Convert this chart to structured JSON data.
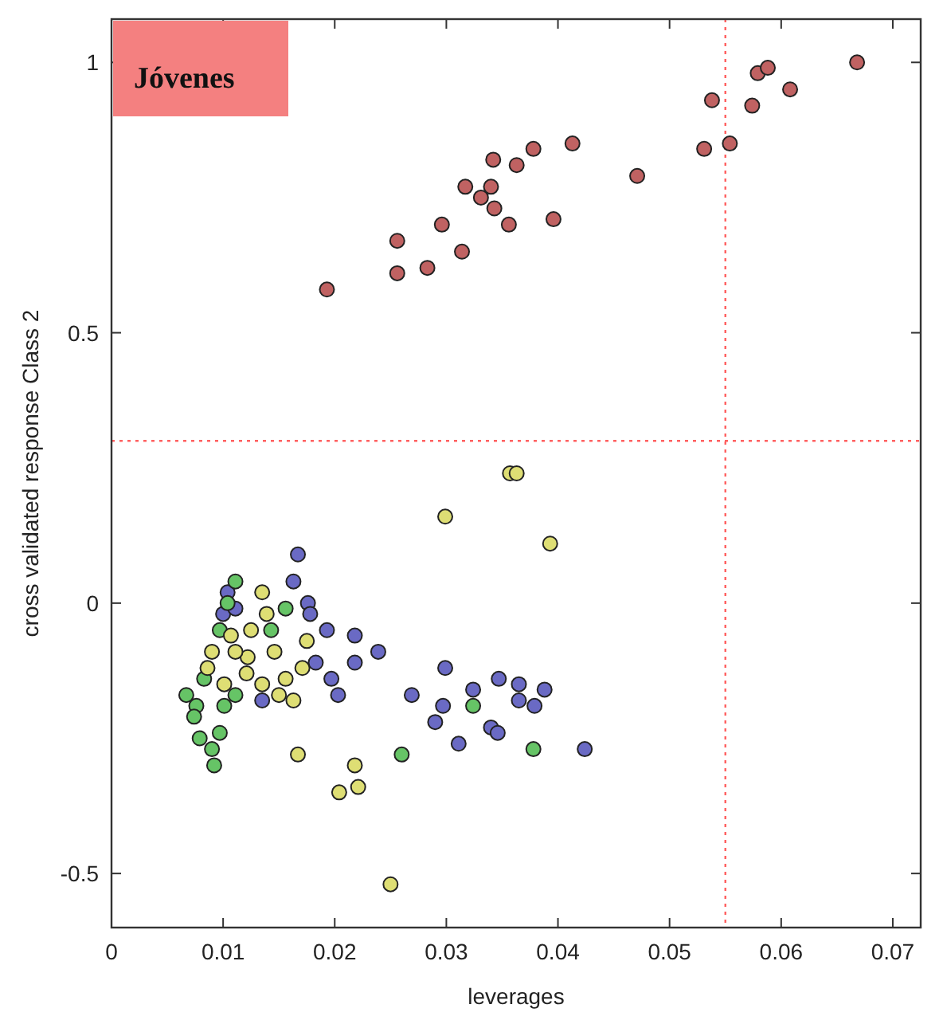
{
  "chart_data": {
    "type": "scatter",
    "xlabel": "leverages",
    "ylabel": "cross validated response Class 2",
    "annotations": [
      "Jóvenes"
    ],
    "xlim": [
      0,
      0.0725
    ],
    "xticks": [
      0,
      0.01,
      0.02,
      0.03,
      0.04,
      0.05,
      0.06,
      0.07
    ],
    "ylim": [
      -0.6,
      1.08
    ],
    "yticks": [
      -0.5,
      0,
      0.5,
      1
    ],
    "grid": false,
    "marker": "circle",
    "ref_lines": [
      {
        "axis": "x",
        "value": 0.055,
        "color": "#ff6060",
        "line_style": "dotted"
      },
      {
        "axis": "y",
        "value": 0.3,
        "color": "#ff6060",
        "line_style": "dotted"
      }
    ],
    "series": [
      {
        "color": "#c06262",
        "x": [
          0.0193,
          0.0256,
          0.0256,
          0.0283,
          0.0296,
          0.0314,
          0.0317,
          0.0331,
          0.034,
          0.0343,
          0.0342,
          0.0356,
          0.0363,
          0.0378,
          0.0396,
          0.0413,
          0.0471,
          0.0531,
          0.0538,
          0.0554,
          0.0574,
          0.0579,
          0.0588,
          0.0608,
          0.0668
        ],
        "values": [
          0.58,
          0.67,
          0.61,
          0.62,
          0.7,
          0.65,
          0.77,
          0.75,
          0.77,
          0.73,
          0.82,
          0.7,
          0.81,
          0.84,
          0.71,
          0.85,
          0.79,
          0.84,
          0.93,
          0.85,
          0.92,
          0.98,
          0.99,
          0.95,
          1.0
        ]
      },
      {
        "color": "#6a6ac4",
        "x": [
          0.0167,
          0.0163,
          0.0176,
          0.0104,
          0.01,
          0.0111,
          0.0178,
          0.0193,
          0.0218,
          0.0218,
          0.0239,
          0.0183,
          0.0197,
          0.0203,
          0.0135,
          0.0269,
          0.0299,
          0.0297,
          0.029,
          0.0311,
          0.0324,
          0.034,
          0.0346,
          0.0347,
          0.0365,
          0.0365,
          0.0379,
          0.0388,
          0.0424
        ],
        "values": [
          0.09,
          0.04,
          0.0,
          0.02,
          -0.02,
          -0.01,
          -0.02,
          -0.05,
          -0.06,
          -0.11,
          -0.09,
          -0.11,
          -0.14,
          -0.17,
          -0.18,
          -0.17,
          -0.12,
          -0.19,
          -0.22,
          -0.26,
          -0.16,
          -0.23,
          -0.24,
          -0.14,
          -0.15,
          -0.18,
          -0.19,
          -0.16,
          -0.27
        ]
      },
      {
        "color": "#66c466",
        "x": [
          0.0111,
          0.0067,
          0.0076,
          0.0083,
          0.0079,
          0.009,
          0.0092,
          0.0097,
          0.0101,
          0.0111,
          0.0156,
          0.0143,
          0.026,
          0.0324,
          0.0378,
          0.0104,
          0.0097,
          0.0074
        ],
        "values": [
          0.04,
          -0.17,
          -0.19,
          -0.14,
          -0.25,
          -0.27,
          -0.3,
          -0.24,
          -0.19,
          -0.17,
          -0.01,
          -0.05,
          -0.28,
          -0.19,
          -0.27,
          0.0,
          -0.05,
          -0.21
        ]
      },
      {
        "color": "#dede74",
        "x": [
          0.0357,
          0.0363,
          0.0299,
          0.0393,
          0.0175,
          0.0167,
          0.0218,
          0.0221,
          0.0204,
          0.025,
          0.0135,
          0.0139,
          0.0125,
          0.0107,
          0.0086,
          0.009,
          0.0122,
          0.0146,
          0.0156,
          0.0163,
          0.0171,
          0.0101,
          0.0121,
          0.0135,
          0.015,
          0.0111
        ],
        "values": [
          0.24,
          0.24,
          0.16,
          0.11,
          -0.07,
          -0.28,
          -0.3,
          -0.34,
          -0.35,
          -0.52,
          0.02,
          -0.02,
          -0.05,
          -0.06,
          -0.12,
          -0.09,
          -0.1,
          -0.09,
          -0.14,
          -0.18,
          -0.12,
          -0.15,
          -0.13,
          -0.15,
          -0.17,
          -0.09
        ]
      }
    ]
  }
}
